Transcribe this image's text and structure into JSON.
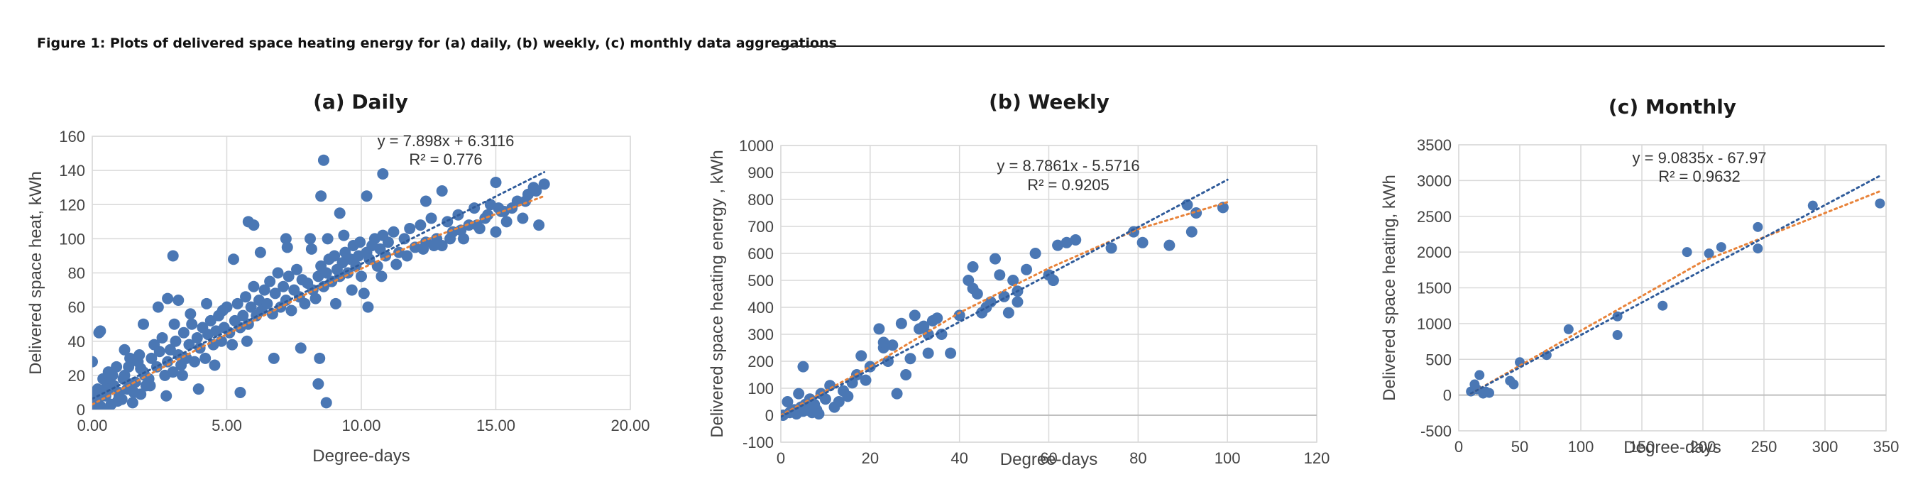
{
  "figure": {
    "caption": "Figure 1: Plots of delivered space heating energy for (a) daily, (b) weekly, (c) monthly data aggregations"
  },
  "colors": {
    "points": "#4a77b4",
    "linear_trend": "#2f5b9a",
    "poly_trend": "#e8833a",
    "grid": "#d9d9d9",
    "axis": "#bfbfbf"
  },
  "chart_data": [
    {
      "type": "scatter",
      "title": "(a) Daily",
      "xlabel": "Degree-days",
      "ylabel": "Delivered space heat, kWh",
      "xlim": [
        0,
        20
      ],
      "ylim": [
        0,
        160
      ],
      "xticks": [
        0,
        5,
        10,
        15,
        20
      ],
      "xtick_labels": [
        "0.00",
        "5.00",
        "10.00",
        "15.00",
        "20.00"
      ],
      "yticks": [
        0,
        20,
        40,
        60,
        80,
        100,
        120,
        140,
        160
      ],
      "ytick_labels": [
        "0",
        "20",
        "40",
        "60",
        "80",
        "100",
        "120",
        "140",
        "160"
      ],
      "grid": true,
      "trendline_equation": "y = 7.898x + 6.3116",
      "r_squared": "R² = 0.776",
      "linear_trend": {
        "slope": 7.898,
        "intercept": 6.3116,
        "x_range": [
          0,
          16.8
        ]
      },
      "poly_trend": [
        [
          0,
          3
        ],
        [
          4,
          36
        ],
        [
          8,
          68
        ],
        [
          12,
          97
        ],
        [
          16.8,
          125
        ]
      ],
      "series": [
        {
          "x": [
            0.0,
            0.1,
            0.2,
            0.25,
            0.3,
            0.4,
            0.5,
            0.6,
            0.7,
            0.8,
            0.9,
            1.0,
            1.1,
            1.2,
            1.3,
            1.4,
            1.5,
            1.6,
            1.7,
            1.8,
            1.9,
            2.0,
            0.05,
            0.15,
            0.35,
            0.55,
            0.75,
            0.95,
            1.15,
            1.35,
            1.55,
            1.75,
            1.95,
            0.2,
            0.6,
            1.0,
            1.4,
            1.8,
            2.1,
            2.2,
            2.3,
            2.4,
            2.5,
            2.6,
            2.7,
            2.8,
            2.9,
            3.0,
            3.1,
            3.2,
            3.3,
            3.4,
            3.5,
            3.6,
            3.7,
            3.8,
            3.9,
            4.0,
            4.1,
            4.2,
            4.3,
            4.4,
            4.5,
            4.6,
            4.7,
            4.8,
            4.9,
            5.0,
            2.15,
            2.45,
            2.75,
            3.05,
            3.35,
            3.65,
            3.95,
            4.25,
            4.55,
            4.85,
            5.1,
            5.2,
            5.3,
            5.4,
            5.5,
            5.6,
            5.7,
            5.8,
            5.9,
            6.0,
            6.1,
            6.2,
            6.3,
            6.4,
            6.5,
            6.6,
            6.7,
            6.8,
            6.9,
            7.0,
            7.1,
            7.2,
            7.3,
            7.4,
            7.5,
            7.6,
            7.7,
            7.8,
            7.9,
            8.0,
            5.25,
            5.75,
            6.25,
            6.75,
            7.25,
            7.75,
            8.1,
            8.2,
            8.3,
            8.4,
            8.5,
            8.6,
            8.7,
            8.8,
            8.9,
            9.0,
            9.1,
            9.2,
            9.3,
            9.4,
            9.5,
            9.6,
            9.7,
            9.8,
            9.9,
            10.0,
            8.15,
            8.45,
            8.75,
            9.05,
            9.35,
            9.65,
            9.95,
            10.1,
            10.2,
            10.3,
            10.4,
            10.5,
            10.6,
            10.7,
            10.8,
            10.9,
            11.0,
            11.2,
            11.4,
            11.6,
            11.8,
            12.0,
            12.2,
            12.4,
            12.6,
            12.8,
            13.0,
            13.2,
            13.4,
            13.6,
            13.8,
            14.0,
            14.2,
            14.4,
            14.6,
            14.8,
            15.0,
            15.2,
            15.4,
            15.6,
            15.8,
            16.0,
            16.2,
            16.4,
            16.6,
            16.8,
            10.25,
            10.75,
            11.3,
            11.7,
            12.3,
            12.7,
            13.3,
            13.7,
            14.3,
            14.7,
            15.3,
            15.1,
            16.1,
            16.5,
            0.3,
            1.9,
            3.0,
            3.2,
            5.8,
            6.0,
            7.2,
            8.5,
            8.6,
            9.2,
            10.2,
            10.8,
            12.4,
            13.0,
            15.0,
            8.7,
            8.4,
            5.5,
            2.8,
            1.2,
            0.6
          ],
          "y": [
            28,
            5,
            12,
            45,
            2,
            18,
            8,
            22,
            3,
            14,
            25,
            10,
            6,
            20,
            12,
            30,
            4,
            16,
            28,
            9,
            22,
            14,
            3,
            10,
            8,
            15,
            20,
            5,
            18,
            25,
            10,
            32,
            20,
            2,
            12,
            8,
            15,
            24,
            18,
            30,
            38,
            25,
            34,
            42,
            20,
            28,
            35,
            22,
            40,
            32,
            26,
            45,
            30,
            38,
            50,
            28,
            42,
            36,
            48,
            30,
            44,
            52,
            38,
            46,
            55,
            40,
            48,
            60,
            14,
            60,
            8,
            50,
            20,
            56,
            12,
            62,
            26,
            58,
            45,
            38,
            52,
            62,
            48,
            55,
            66,
            50,
            60,
            72,
            55,
            64,
            58,
            70,
            62,
            75,
            56,
            68,
            80,
            60,
            72,
            64,
            78,
            58,
            70,
            82,
            66,
            76,
            62,
            74,
            88,
            40,
            92,
            30,
            95,
            36,
            100,
            70,
            65,
            78,
            84,
            72,
            80,
            88,
            75,
            90,
            82,
            78,
            86,
            92,
            80,
            88,
            96,
            84,
            90,
            78,
            94,
            30,
            100,
            62,
            102,
            70,
            98,
            68,
            92,
            88,
            96,
            100,
            84,
            94,
            102,
            90,
            98,
            104,
            92,
            100,
            106,
            95,
            108,
            98,
            112,
            100,
            96,
            110,
            104,
            114,
            100,
            108,
            118,
            106,
            112,
            120,
            104,
            116,
            110,
            118,
            122,
            112,
            126,
            130,
            108,
            132,
            60,
            78,
            85,
            90,
            94,
            96,
            100,
            105,
            108,
            114,
            116,
            118,
            122,
            128,
            46,
            50,
            90,
            64,
            110,
            108,
            100,
            125,
            146,
            115,
            125,
            138,
            122,
            128,
            133,
            4,
            15,
            10,
            65,
            35,
            0
          ]
        }
      ]
    },
    {
      "type": "scatter",
      "title": "(b) Weekly",
      "xlabel": "Degree-days",
      "ylabel": "Delivered space heating energy , kWh",
      "xlim": [
        0,
        120
      ],
      "ylim": [
        -100,
        1000
      ],
      "xticks": [
        0,
        20,
        40,
        60,
        80,
        100,
        120
      ],
      "xtick_labels": [
        "0",
        "20",
        "40",
        "60",
        "80",
        "100",
        "120"
      ],
      "yticks": [
        -100,
        0,
        100,
        200,
        300,
        400,
        500,
        600,
        700,
        800,
        900,
        1000
      ],
      "ytick_labels": [
        "-100",
        "0",
        "100",
        "200",
        "300",
        "400",
        "500",
        "600",
        "700",
        "800",
        "900",
        "1000"
      ],
      "grid": true,
      "trendline_equation": "y = 8.7861x - 5.5716",
      "r_squared": "R² = 0.9205",
      "linear_trend": {
        "slope": 8.7861,
        "intercept": -5.5716,
        "x_range": [
          0,
          100
        ]
      },
      "poly_trend": [
        [
          0,
          0
        ],
        [
          20,
          180
        ],
        [
          40,
          380
        ],
        [
          60,
          545
        ],
        [
          80,
          690
        ],
        [
          100,
          790
        ]
      ],
      "series": [
        {
          "x": [
            0.5,
            1.5,
            2.0,
            3.0,
            3.5,
            4.0,
            4.5,
            5.0,
            5.5,
            6.0,
            6.5,
            7.0,
            7.5,
            8.0,
            9.0,
            10.0,
            11.0,
            12.0,
            13.0,
            14.0,
            15.0,
            16.0,
            5.0,
            8.5,
            17.0,
            18.0,
            19.0,
            20.0,
            22.0,
            23.0,
            24.0,
            25.0,
            26.0,
            27.0,
            28.0,
            29.0,
            30.0,
            31.0,
            32.0,
            33.0,
            34.0,
            35.0,
            36.0,
            38.0,
            40.0,
            42.0,
            43.0,
            44.0,
            45.0,
            46.0,
            47.0,
            48.0,
            49.0,
            50.0,
            51.0,
            52.0,
            53.0,
            55.0,
            57.0,
            60.0,
            61.0,
            62.0,
            64.0,
            66.0,
            74.0,
            79.0,
            81.0,
            87.0,
            91.0,
            92.0,
            93.0,
            99.0,
            23.0,
            33.0,
            43.0,
            53.0,
            61.0
          ],
          "y": [
            0,
            50,
            10,
            20,
            5,
            80,
            30,
            180,
            40,
            20,
            60,
            10,
            40,
            20,
            80,
            60,
            110,
            30,
            50,
            90,
            70,
            120,
            15,
            5,
            150,
            220,
            130,
            180,
            320,
            250,
            200,
            260,
            80,
            340,
            150,
            210,
            370,
            320,
            330,
            300,
            350,
            360,
            300,
            230,
            370,
            500,
            550,
            450,
            380,
            400,
            420,
            580,
            520,
            440,
            380,
            500,
            420,
            540,
            600,
            520,
            500,
            630,
            640,
            650,
            620,
            680,
            640,
            630,
            780,
            680,
            750,
            770,
            270,
            230,
            470,
            460,
            500
          ]
        }
      ]
    },
    {
      "type": "scatter",
      "title": "(c) Monthly",
      "xlabel": "Degree-days",
      "ylabel": "Delivered space heating, kWh",
      "xlim": [
        0,
        350
      ],
      "ylim": [
        -500,
        3500
      ],
      "xticks": [
        0,
        50,
        100,
        150,
        200,
        250,
        300,
        350
      ],
      "xtick_labels": [
        "0",
        "50",
        "100",
        "150",
        "200",
        "250",
        "300",
        "350"
      ],
      "yticks": [
        -500,
        0,
        500,
        1000,
        1500,
        2000,
        2500,
        3000,
        3500
      ],
      "ytick_labels": [
        "-500",
        "0",
        "500",
        "1000",
        "1500",
        "2000",
        "2500",
        "3000",
        "3500"
      ],
      "grid": true,
      "trendline_equation": "y = 9.0835x - 67.97",
      "r_squared": "R² = 0.9632",
      "linear_trend": {
        "slope": 9.0835,
        "intercept": -67.97,
        "x_range": [
          10,
          345
        ]
      },
      "poly_trend": [
        [
          10,
          20
        ],
        [
          100,
          900
        ],
        [
          200,
          1870
        ],
        [
          345,
          2850
        ]
      ],
      "series": [
        {
          "x": [
            10,
            13,
            15,
            17,
            20,
            22,
            25,
            42,
            45,
            50,
            72,
            90,
            130,
            130,
            167,
            187,
            205,
            215,
            245,
            245,
            290,
            345
          ],
          "y": [
            50,
            150,
            80,
            280,
            20,
            50,
            30,
            200,
            150,
            460,
            560,
            920,
            1100,
            840,
            1250,
            2000,
            1980,
            2070,
            2050,
            2350,
            2650,
            2680
          ]
        }
      ]
    }
  ]
}
